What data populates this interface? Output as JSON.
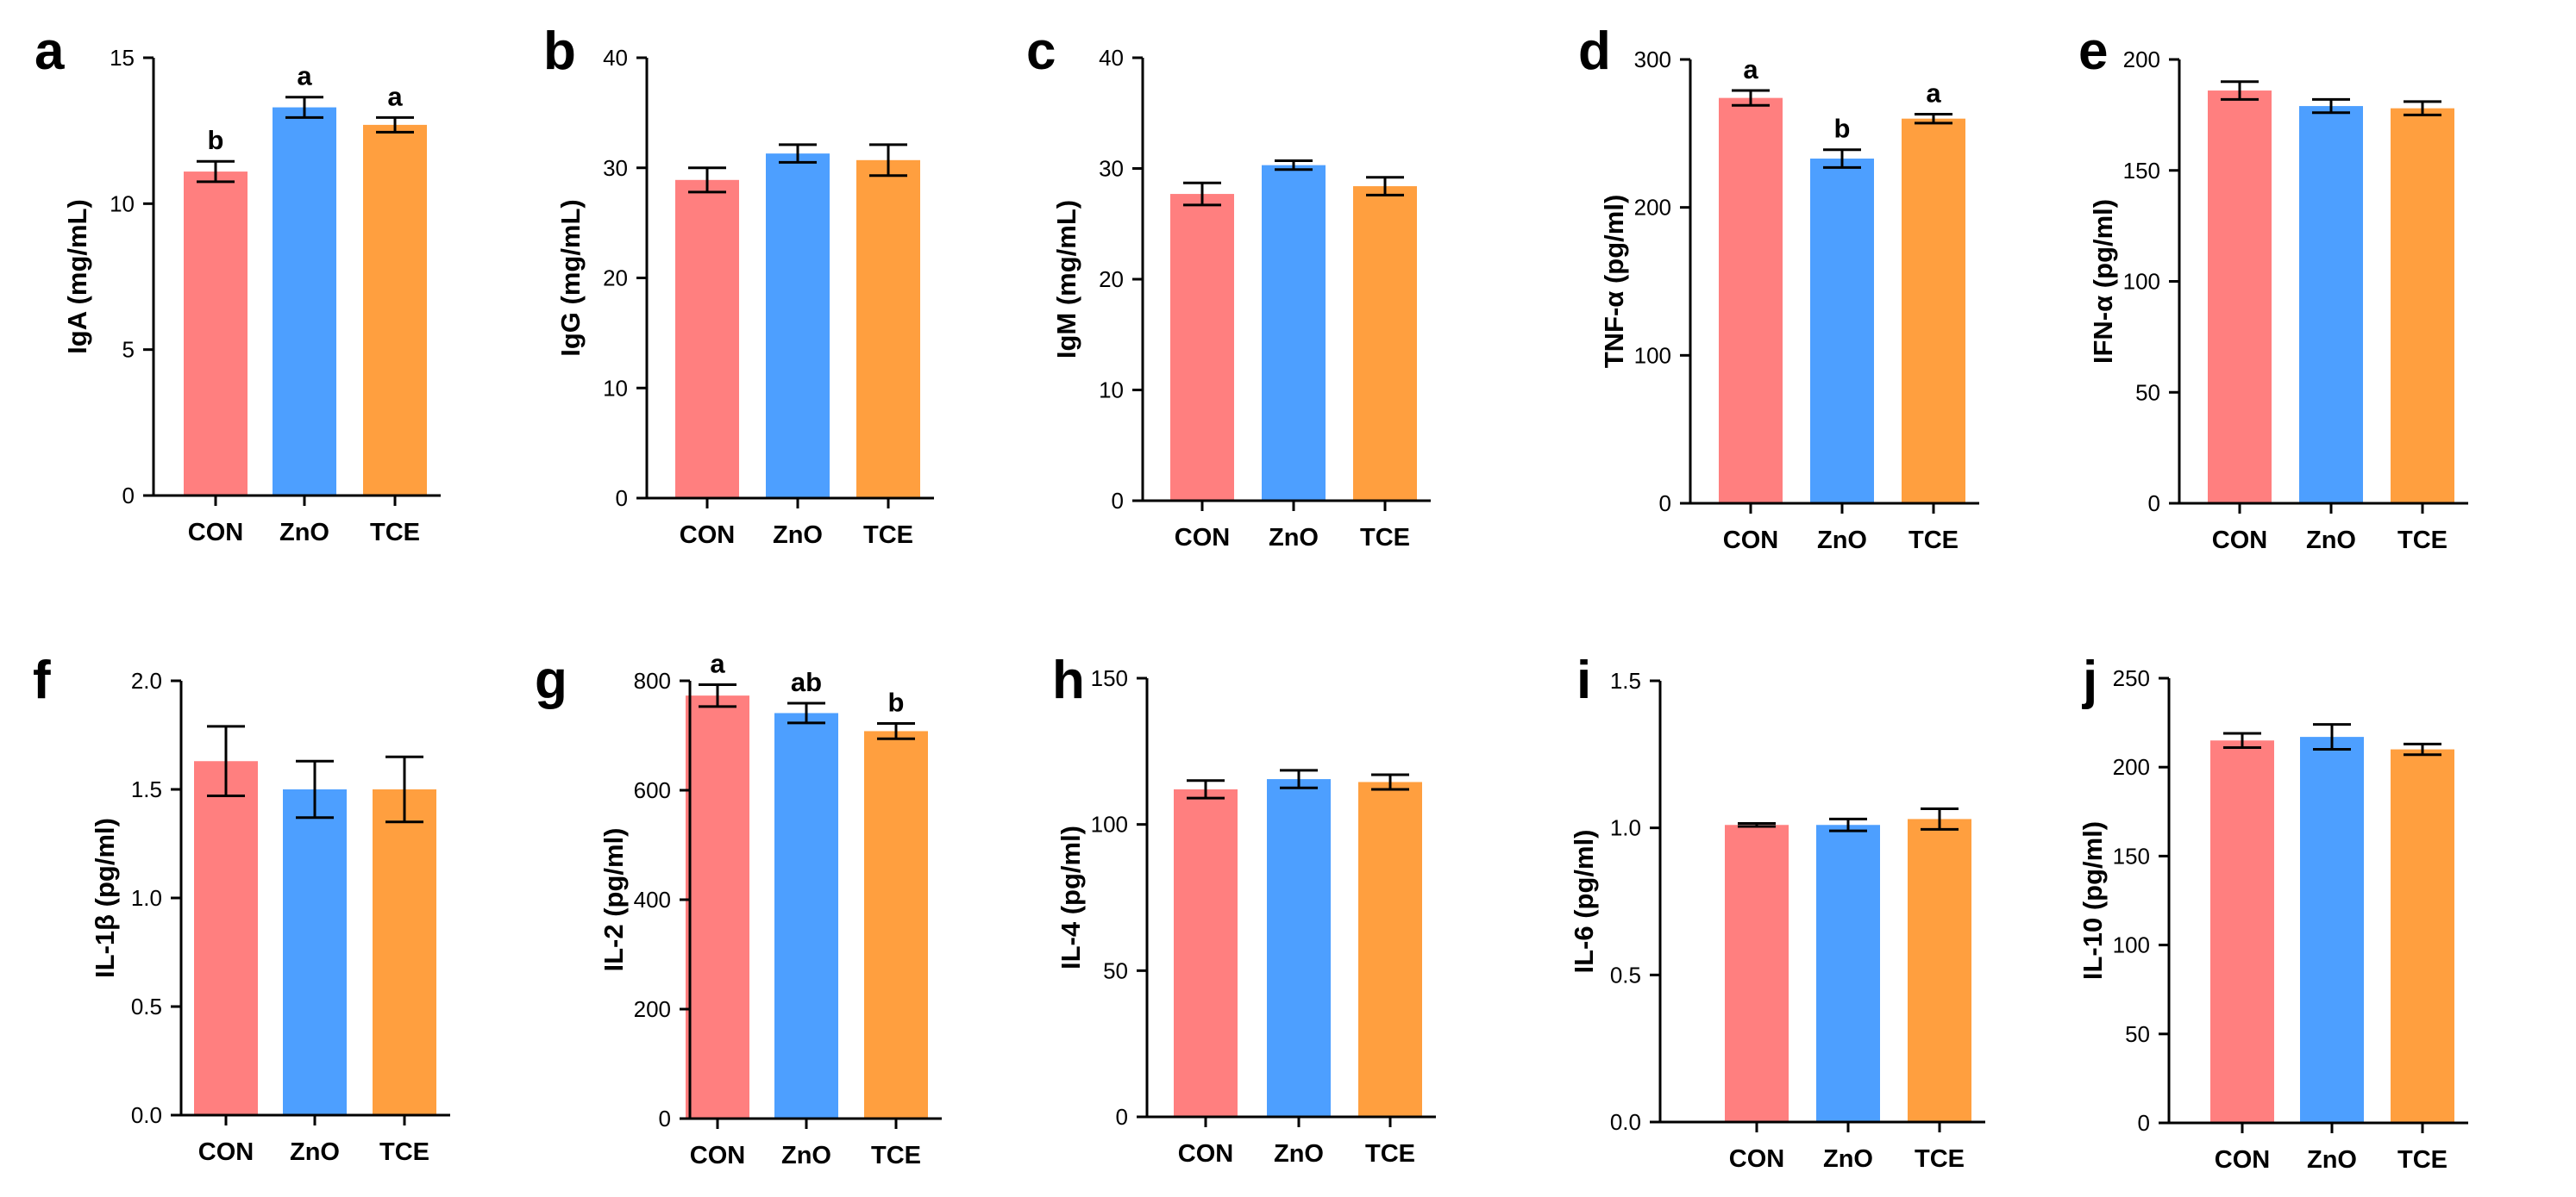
{
  "figure": {
    "colors": {
      "CON": "#FF7F7F",
      "ZnO": "#4D9FFF",
      "TCE": "#FF9F3F"
    }
  },
  "chart_data": [
    {
      "panel": "a",
      "type": "bar",
      "ylabel": "IgA (mg/mL)",
      "categories": [
        "CON",
        "ZnO",
        "TCE"
      ],
      "values": [
        11.1,
        13.3,
        12.7
      ],
      "errors": [
        0.35,
        0.35,
        0.25
      ],
      "ylim": [
        0,
        15
      ],
      "yticks": [
        0,
        5,
        10,
        15
      ],
      "ytick_labels": [
        "0",
        "5",
        "10",
        "15"
      ],
      "significance": [
        "b",
        "a",
        "a"
      ]
    },
    {
      "panel": "b",
      "type": "bar",
      "ylabel": "IgG (mg/mL)",
      "categories": [
        "CON",
        "ZnO",
        "TCE"
      ],
      "values": [
        28.9,
        31.3,
        30.7
      ],
      "errors": [
        1.1,
        0.8,
        1.4
      ],
      "ylim": [
        0,
        40
      ],
      "yticks": [
        0,
        10,
        20,
        30,
        40
      ],
      "ytick_labels": [
        "0",
        "10",
        "20",
        "30",
        "40"
      ],
      "significance": [
        "",
        "",
        ""
      ]
    },
    {
      "panel": "c",
      "type": "bar",
      "ylabel": "IgM (mg/mL)",
      "categories": [
        "CON",
        "ZnO",
        "TCE"
      ],
      "values": [
        27.7,
        30.3,
        28.4
      ],
      "errors": [
        1.0,
        0.4,
        0.8
      ],
      "ylim": [
        0,
        40
      ],
      "yticks": [
        0,
        10,
        20,
        30,
        40
      ],
      "ytick_labels": [
        "0",
        "10",
        "20",
        "30",
        "40"
      ],
      "significance": [
        "",
        "",
        ""
      ]
    },
    {
      "panel": "d",
      "type": "bar",
      "ylabel": "TNF-α (pg/ml)",
      "categories": [
        "CON",
        "ZnO",
        "TCE"
      ],
      "values": [
        274,
        233,
        260
      ],
      "errors": [
        5,
        6,
        3
      ],
      "ylim": [
        0,
        300
      ],
      "yticks": [
        0,
        100,
        200,
        300
      ],
      "ytick_labels": [
        "0",
        "100",
        "200",
        "300"
      ],
      "significance": [
        "a",
        "b",
        "a"
      ]
    },
    {
      "panel": "e",
      "type": "bar",
      "ylabel": "IFN-α (pg/ml)",
      "categories": [
        "CON",
        "ZnO",
        "TCE"
      ],
      "values": [
        186,
        179,
        178
      ],
      "errors": [
        4,
        3,
        3
      ],
      "ylim": [
        0,
        200
      ],
      "yticks": [
        0,
        50,
        100,
        150,
        200
      ],
      "ytick_labels": [
        "0",
        "50",
        "100",
        "150",
        "200"
      ],
      "significance": [
        "",
        "",
        ""
      ]
    },
    {
      "panel": "f",
      "type": "bar",
      "ylabel": "IL-1β (pg/ml)",
      "categories": [
        "CON",
        "ZnO",
        "TCE"
      ],
      "values": [
        1.63,
        1.5,
        1.5
      ],
      "errors": [
        0.16,
        0.13,
        0.15
      ],
      "ylim": [
        0,
        2.0
      ],
      "yticks": [
        0,
        0.5,
        1.0,
        1.5,
        2.0
      ],
      "ytick_labels": [
        "0.0",
        "0.5",
        "1.0",
        "1.5",
        "2.0"
      ],
      "significance": [
        "",
        "",
        ""
      ]
    },
    {
      "panel": "g",
      "type": "bar",
      "ylabel": "IL-2 (pg/ml)",
      "categories": [
        "CON",
        "ZnO",
        "TCE"
      ],
      "values": [
        773,
        741,
        708
      ],
      "errors": [
        20,
        18,
        14
      ],
      "ylim": [
        0,
        800
      ],
      "yticks": [
        0,
        200,
        400,
        600,
        800
      ],
      "ytick_labels": [
        "0",
        "200",
        "400",
        "600",
        "800"
      ],
      "significance": [
        "a",
        "ab",
        "b"
      ]
    },
    {
      "panel": "h",
      "type": "bar",
      "ylabel": "IL-4 (pg/ml)",
      "categories": [
        "CON",
        "ZnO",
        "TCE"
      ],
      "values": [
        112,
        115.5,
        114.5
      ],
      "errors": [
        3,
        3,
        2.5
      ],
      "ylim": [
        0,
        150
      ],
      "yticks": [
        0,
        50,
        100,
        150
      ],
      "ytick_labels": [
        "0",
        "50",
        "100",
        "150"
      ],
      "significance": [
        "",
        "",
        ""
      ]
    },
    {
      "panel": "i",
      "type": "bar",
      "ylabel": "IL-6 (pg/ml)",
      "categories": [
        "CON",
        "ZnO",
        "TCE"
      ],
      "values": [
        1.01,
        1.01,
        1.03
      ],
      "errors": [
        0.005,
        0.02,
        0.035
      ],
      "ylim": [
        0,
        1.5
      ],
      "yticks": [
        0,
        0.5,
        1.0,
        1.5
      ],
      "ytick_labels": [
        "0.0",
        "0.5",
        "1.0",
        "1.5"
      ],
      "significance": [
        "",
        "",
        ""
      ]
    },
    {
      "panel": "j",
      "type": "bar",
      "ylabel": "IL-10 (pg/ml)",
      "categories": [
        "CON",
        "ZnO",
        "TCE"
      ],
      "values": [
        215,
        217,
        210
      ],
      "errors": [
        4,
        7,
        3
      ],
      "ylim": [
        0,
        250
      ],
      "yticks": [
        0,
        50,
        100,
        150,
        200,
        250
      ],
      "ytick_labels": [
        "0",
        "50",
        "100",
        "150",
        "200",
        "250"
      ],
      "significance": [
        "",
        "",
        ""
      ]
    }
  ]
}
